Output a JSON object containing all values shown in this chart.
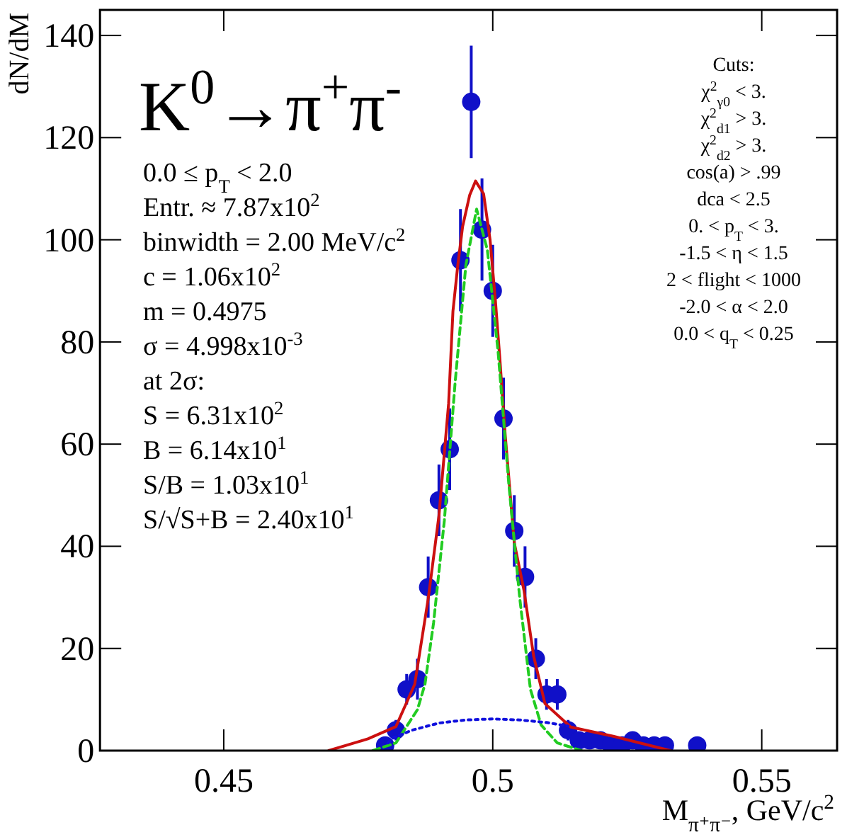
{
  "chart_data": {
    "type": "scatter",
    "title": "K$^{0}$→π$^{+}$π$^{-}$",
    "xlabel": "M$_{π⁺π⁻}$, GeV/c$^{2}$",
    "ylabel": "dN/dM",
    "xlim": [
      0.427,
      0.564
    ],
    "ylim": [
      0,
      145
    ],
    "xticks": [
      0.45,
      {
        "value": 0.5,
        "label": "0.5"
      },
      0.55
    ],
    "yticks": [
      0,
      20,
      40,
      60,
      80,
      100,
      120,
      140
    ],
    "grid": false,
    "annotations": [
      "0.0 ≤ p$_{T}$ < 2.0",
      "Entr. ≈ 7.87x10$^{2}$",
      "binwidth = 2.00 MeV/c$^{2}$",
      "c = 1.06x10$^{2}$",
      "m = 0.4975",
      "σ = 4.998x10$^{-3}$",
      "at 2σ:",
      "S = 6.31x10$^{2}$",
      "B = 6.14x10$^{1}$",
      "S/B = 1.03x10$^{1}$",
      "S/√S+B = 2.40x10$^{1}$",
      "Cuts:",
      "χ$^{2}$$_{γ0}$ < 3.",
      "χ$^{2}$$_{d1}$ > 3.",
      "χ$^{2}$$_{d2}$ > 3.",
      "cos(a) > .99",
      "dca < 2.5",
      "0. <  p$_{T}$ < 3.",
      "-1.5 < η < 1.5",
      "2 <  flight < 1000",
      "-2.0 <  α < 2.0",
      "0.0 <  q$_{T}$ < 0.25"
    ],
    "series": [
      {
        "color": "#1010c8",
        "marker": "circle",
        "x": [
          0.48,
          0.482,
          0.484,
          0.486,
          0.488,
          0.49,
          0.492,
          0.494,
          0.496,
          0.498,
          0.5,
          0.502,
          0.504,
          0.506,
          0.508,
          0.51,
          0.512,
          0.514,
          0.516,
          0.518,
          0.52,
          0.522,
          0.524,
          0.526,
          0.528,
          0.53,
          0.532,
          0.538
        ],
        "values": [
          1,
          4,
          12,
          14,
          32,
          49,
          59,
          96,
          127,
          102,
          90,
          65,
          43,
          34,
          18,
          11,
          11,
          4,
          2,
          2,
          2,
          1,
          1,
          2,
          1,
          1,
          1,
          1
        ],
        "errors": [
          1,
          2,
          3,
          4,
          6,
          7,
          8,
          10,
          11,
          10,
          9,
          8,
          7,
          6,
          4,
          3,
          3,
          2,
          1,
          1,
          1,
          1,
          1,
          1,
          1,
          1,
          1,
          1
        ]
      },
      {
        "type": "line",
        "color": "#cc1010",
        "line_style": "solid",
        "x": [
          0.4695,
          0.4768,
          0.482,
          0.4855,
          0.488,
          0.49,
          0.4918,
          0.4926,
          0.4935,
          0.4944,
          0.4957,
          0.4968,
          0.4983,
          0.4995,
          0.5005,
          0.5013,
          0.5023,
          0.504,
          0.5058,
          0.5076,
          0.5097,
          0.5145,
          0.5224,
          0.533
        ],
        "values": [
          0,
          2.3,
          4.7,
          13,
          29.7,
          46,
          68,
          86,
          95,
          102.6,
          108.7,
          111.5,
          109,
          100,
          88,
          77,
          62,
          40.7,
          31.4,
          18.5,
          9.2,
          4.6,
          2.8,
          0
        ]
      },
      {
        "type": "line",
        "color": "#22cc22",
        "line_style": "dashed",
        "x": [
          0.4777,
          0.482,
          0.486,
          0.4874,
          0.489,
          0.491,
          0.493,
          0.495,
          0.497,
          0.499,
          0.501,
          0.503,
          0.505,
          0.507,
          0.509,
          0.512,
          0.5165
        ],
        "values": [
          0,
          1.5,
          8,
          13,
          25,
          45,
          72,
          95,
          106,
          98,
          78,
          52,
          30,
          12,
          5,
          1.5,
          0
        ]
      },
      {
        "type": "line",
        "color": "#1010dd",
        "line_style": "dotted",
        "x": [
          0.4805,
          0.4815,
          0.485,
          0.49,
          0.495,
          0.5,
          0.505,
          0.51,
          0.514
        ],
        "values": [
          1.5,
          2.5,
          4,
          5.4,
          6,
          6.2,
          6,
          5.5,
          4.8
        ]
      }
    ]
  }
}
